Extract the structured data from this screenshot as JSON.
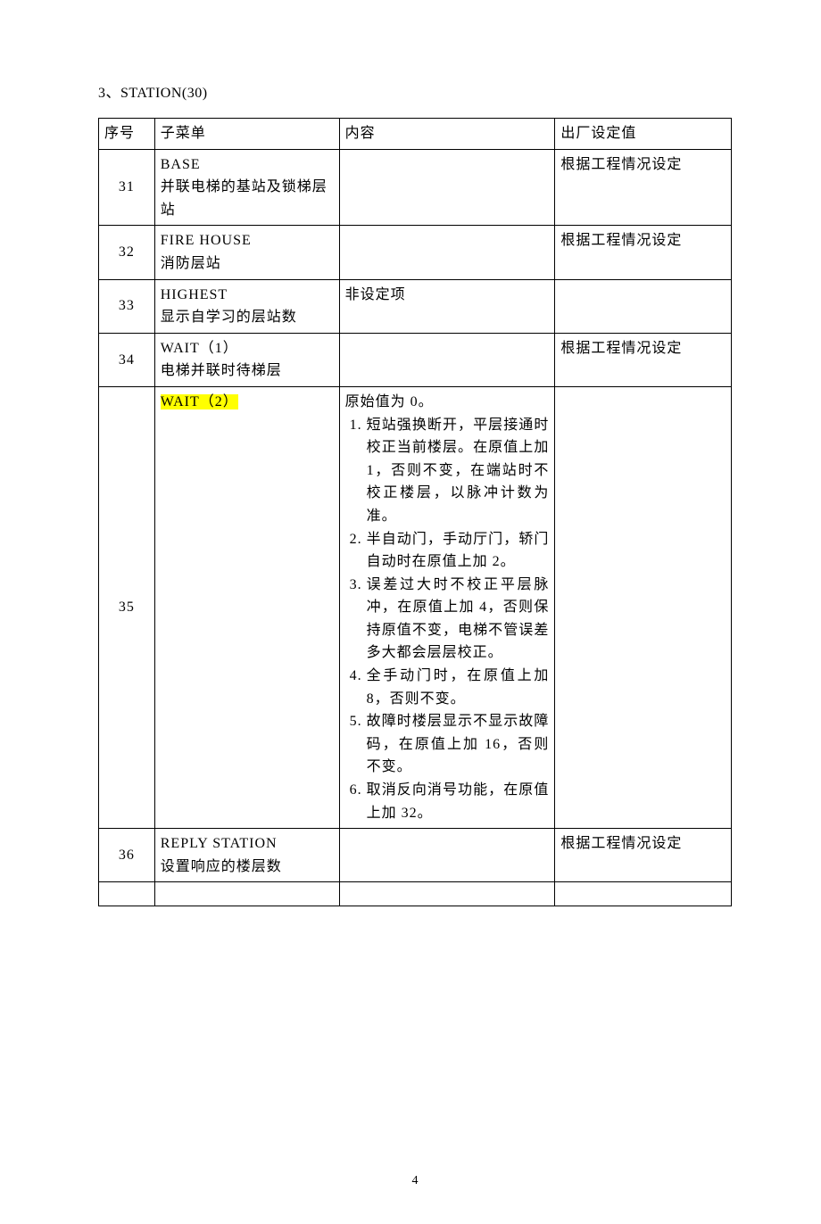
{
  "section_title": "3、STATION(30)",
  "columns": {
    "num": "序号",
    "sub": "子菜单",
    "content": "内容",
    "factory": "出厂设定值"
  },
  "rows": [
    {
      "num": "31",
      "sub": "BASE\n并联电梯的基站及锁梯层站",
      "content": "",
      "factory": "根据工程情况设定"
    },
    {
      "num": "32",
      "sub": "FIRE HOUSE\n消防层站",
      "content": "",
      "factory": "根据工程情况设定"
    },
    {
      "num": "33",
      "sub": "HIGHEST\n显示自学习的层站数",
      "content": "非设定项",
      "factory": ""
    },
    {
      "num": "34",
      "sub": "WAIT（1）\n电梯并联时待梯层",
      "content": "",
      "factory": "根据工程情况设定"
    },
    {
      "num": "35",
      "sub_highlight": "WAIT（2）",
      "content_intro": "原始值为 0。",
      "content_items": [
        "短站强换断开，平层接通时校正当前楼层。在原值上加 1，否则不变，在端站时不校正楼层，以脉冲计数为准。",
        "半自动门，手动厅门，轿门自动时在原值上加 2。",
        "误差过大时不校正平层脉冲，在原值上加 4，否则保持原值不变，电梯不管误差多大都会层层校正。",
        "全手动门时，在原值上加 8，否则不变。",
        "故障时楼层显示不显示故障码，在原值上加 16，否则不变。",
        "取消反向消号功能，在原值上加 32。"
      ],
      "factory": ""
    },
    {
      "num": "36",
      "sub": "REPLY STATION\n设置响应的楼层数",
      "content": "",
      "factory": "根据工程情况设定"
    }
  ],
  "page_number": "4"
}
